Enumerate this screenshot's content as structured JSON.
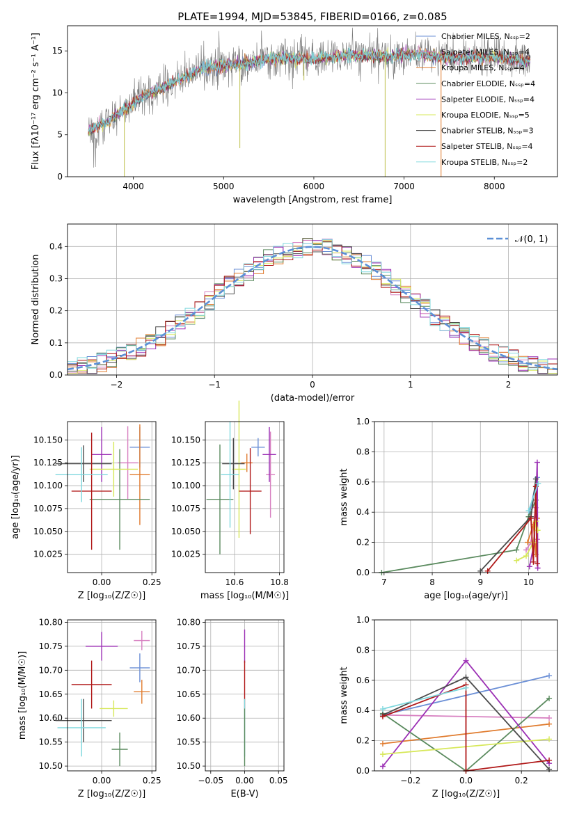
{
  "title": "PLATE=1994, MJD=53845, FIBERID=0166, z=0.085",
  "colors": {
    "Chabrier MILES": "#6b8fd6",
    "Salpeter MILES": "#d77fc0",
    "Kroupa MILES": "#e07b2e",
    "Chabrier ELODIE": "#5a8a5e",
    "Salpeter ELODIE": "#9b2fb4",
    "Kroupa ELODIE": "#d7e85a",
    "Chabrier STELIB": "#4a4a4a",
    "Salpeter STELIB": "#b01818",
    "Kroupa STELIB": "#7fd8de",
    "gaussian": "#5b8fd6",
    "grid": "#b0b0b0"
  },
  "chart_data": [
    {
      "type": "line",
      "name": "spectrum",
      "xlabel": "wavelength [Angstrom, rest frame]",
      "ylabel": "Flux [fλ10⁻¹⁷ erg cm⁻² s⁻¹ A⁻¹]",
      "xlim": [
        3270,
        8700
      ],
      "ylim": [
        0,
        18
      ],
      "xticks": [
        "4000",
        "5000",
        "6000",
        "7000",
        "8000"
      ],
      "yticks": [
        "0",
        "5",
        "10",
        "15"
      ],
      "legend_position": "top-right",
      "legend": [
        "Chabrier MILES, Nₛₛₚ=2",
        "Salpeter MILES, Nₛₛₚ=4",
        "Kroupa MILES, Nₛₛₚ=4",
        "Chabrier ELODIE, Nₛₛₚ=4",
        "Salpeter ELODIE, Nₛₛₚ=4",
        "Kroupa ELODIE, Nₛₛₚ=5",
        "Chabrier STELIB, Nₛₛₚ=3",
        "Salpeter STELIB, Nₛₛₚ=4",
        "Kroupa STELIB, Nₛₛₚ=2"
      ],
      "x_range_data": [
        3500,
        8400
      ],
      "continuum": [
        [
          3500,
          5.5
        ],
        [
          3700,
          6.5
        ],
        [
          3900,
          8
        ],
        [
          4100,
          9.5
        ],
        [
          4400,
          11
        ],
        [
          4800,
          13
        ],
        [
          5200,
          13.5
        ],
        [
          5600,
          14.2
        ],
        [
          6000,
          14
        ],
        [
          6400,
          14.5
        ],
        [
          6800,
          14.3
        ],
        [
          7200,
          14.6
        ],
        [
          7500,
          14.1
        ],
        [
          8000,
          14.3
        ],
        [
          8400,
          13.8
        ]
      ]
    },
    {
      "type": "bar",
      "name": "residual-histogram",
      "xlabel": "(data-model)/error",
      "ylabel": "Normed distribution",
      "xlim": [
        -2.5,
        2.5
      ],
      "ylim": [
        0,
        0.47
      ],
      "xticks": [
        "−2",
        "−1",
        "0",
        "1",
        "2"
      ],
      "yticks": [
        "0.0",
        "0.1",
        "0.2",
        "0.3",
        "0.4"
      ],
      "bin_width": 0.1,
      "legend_position": "top-right",
      "legend": [
        "𝒩(0, 1)"
      ]
    },
    {
      "type": "scatter",
      "name": "age-vs-Z",
      "xlabel": "Z [log₁₀(Z/Z☉)]",
      "ylabel": "age  [log₁₀(age/yr)]",
      "xlim": [
        -0.17,
        0.27
      ],
      "ylim": [
        10.005,
        10.17
      ],
      "xticks": [
        "0.00",
        "0.25"
      ],
      "yticks": [
        "10.025",
        "10.050",
        "10.075",
        "10.100",
        "10.125",
        "10.150"
      ],
      "points": [
        {
          "model": "Chabrier MILES",
          "x": 0.19,
          "xerr": 0.05,
          "y": 10.142,
          "yerr": 0.022
        },
        {
          "model": "Salpeter MILES",
          "x": 0.13,
          "xerr": 0.05,
          "y": 10.125,
          "yerr": 0.04
        },
        {
          "model": "Kroupa MILES",
          "x": 0.19,
          "xerr": 0.05,
          "y": 10.112,
          "yerr": 0.055
        },
        {
          "model": "Chabrier ELODIE",
          "x": 0.09,
          "xerr": 0.15,
          "y": 10.085,
          "yerr": 0.055
        },
        {
          "model": "Salpeter ELODIE",
          "x": -0.0,
          "xerr": 0.05,
          "y": 10.134,
          "yerr": 0.03
        },
        {
          "model": "Kroupa ELODIE",
          "x": 0.06,
          "xerr": 0.12,
          "y": 10.118,
          "yerr": 0.03
        },
        {
          "model": "Chabrier STELIB",
          "x": -0.09,
          "xerr": 0.14,
          "y": 10.124,
          "yerr": 0.02
        },
        {
          "model": "Salpeter STELIB",
          "x": -0.05,
          "xerr": 0.1,
          "y": 10.094,
          "yerr": 0.064
        },
        {
          "model": "Kroupa STELIB",
          "x": -0.1,
          "xerr": 0.13,
          "y": 10.112,
          "yerr": 0.03
        }
      ]
    },
    {
      "type": "scatter",
      "name": "age-vs-mass",
      "xlabel": "mass [log₁₀(M/M☉)]",
      "ylabel": "",
      "xlim": [
        10.47,
        10.82
      ],
      "ylim": [
        10.005,
        10.17
      ],
      "xticks": [
        "10.6",
        "10.8"
      ],
      "yticks": [
        "10.025",
        "10.050",
        "10.075",
        "10.100",
        "10.125",
        "10.150"
      ],
      "points": [
        {
          "model": "Chabrier MILES",
          "x": 10.705,
          "xerr": 0.03,
          "y": 10.142,
          "yerr": 0.01
        },
        {
          "model": "Salpeter MILES",
          "x": 10.76,
          "xerr": 0.02,
          "y": 10.112,
          "yerr": 0.047
        },
        {
          "model": "Kroupa MILES",
          "x": 10.655,
          "xerr": 0.025,
          "y": 10.125,
          "yerr": 0.01
        },
        {
          "model": "Chabrier ELODIE",
          "x": 10.535,
          "xerr": 0.06,
          "y": 10.085,
          "yerr": 0.06
        },
        {
          "model": "Salpeter ELODIE",
          "x": 10.755,
          "xerr": 0.03,
          "y": 10.134,
          "yerr": 0.03
        },
        {
          "model": "Kroupa ELODIE",
          "x": 10.62,
          "xerr": 0.03,
          "y": 10.118,
          "yerr": 0.075
        },
        {
          "model": "Chabrier STELIB",
          "x": 10.595,
          "xerr": 0.05,
          "y": 10.124,
          "yerr": 0.028
        },
        {
          "model": "Salpeter STELIB",
          "x": 10.67,
          "xerr": 0.05,
          "y": 10.094,
          "yerr": 0.047
        },
        {
          "model": "Kroupa STELIB",
          "x": 10.58,
          "xerr": 0.04,
          "y": 10.112,
          "yerr": 0.058
        }
      ]
    },
    {
      "type": "line",
      "name": "mass-weight-vs-age",
      "xlabel": "age  [log₁₀(age/yr)]",
      "ylabel": "mass weight",
      "xlim": [
        6.8,
        10.6
      ],
      "ylim": [
        0,
        1
      ],
      "xticks": [
        "7",
        "8",
        "9",
        "10"
      ],
      "yticks": [
        "0.0",
        "0.2",
        "0.4",
        "0.6",
        "0.8",
        "1.0"
      ],
      "series": [
        {
          "model": "Chabrier MILES",
          "points": [
            [
              10.0,
              0.37
            ],
            [
              10.18,
              0.63
            ]
          ]
        },
        {
          "model": "Salpeter MILES",
          "points": [
            [
              9.95,
              0.15
            ],
            [
              10.05,
              0.2
            ],
            [
              10.15,
              0.43
            ],
            [
              10.18,
              0.22
            ]
          ]
        },
        {
          "model": "Kroupa MILES",
          "points": [
            [
              9.98,
              0.2
            ],
            [
              10.1,
              0.32
            ],
            [
              10.15,
              0.12
            ],
            [
              10.18,
              0.36
            ]
          ]
        },
        {
          "model": "Chabrier ELODIE",
          "points": [
            [
              6.95,
              0.0
            ],
            [
              9.75,
              0.15
            ],
            [
              10.0,
              0.37
            ],
            [
              10.15,
              0.48
            ]
          ]
        },
        {
          "model": "Salpeter ELODIE",
          "points": [
            [
              10.02,
              0.04
            ],
            [
              10.12,
              0.2
            ],
            [
              10.18,
              0.73
            ],
            [
              10.19,
              0.03
            ]
          ]
        },
        {
          "model": "Kroupa ELODIE",
          "points": [
            [
              9.75,
              0.08
            ],
            [
              9.95,
              0.11
            ],
            [
              10.1,
              0.2
            ],
            [
              10.15,
              0.34
            ],
            [
              10.19,
              0.28
            ]
          ]
        },
        {
          "model": "Chabrier STELIB",
          "points": [
            [
              9.0,
              0.01
            ],
            [
              10.05,
              0.37
            ],
            [
              10.15,
              0.62
            ]
          ]
        },
        {
          "model": "Salpeter STELIB",
          "points": [
            [
              9.15,
              0.01
            ],
            [
              10.05,
              0.36
            ],
            [
              10.1,
              0.07
            ],
            [
              10.15,
              0.57
            ],
            [
              10.18,
              0.06
            ]
          ]
        },
        {
          "model": "Kroupa STELIB",
          "points": [
            [
              10.0,
              0.41
            ],
            [
              10.2,
              0.59
            ]
          ]
        }
      ]
    },
    {
      "type": "scatter",
      "name": "mass-vs-Z",
      "xlabel": "Z [log₁₀(Z/Z☉)]",
      "ylabel": "mass [log₁₀(M/M☉)]",
      "xlim": [
        -0.17,
        0.27
      ],
      "ylim": [
        10.49,
        10.805
      ],
      "xticks": [
        "0.00",
        "0.25"
      ],
      "yticks": [
        "10.50",
        "10.55",
        "10.60",
        "10.65",
        "10.70",
        "10.75",
        "10.80"
      ],
      "points": [
        {
          "model": "Chabrier MILES",
          "x": 0.19,
          "xerr": 0.05,
          "y": 10.705,
          "yerr": 0.03
        },
        {
          "model": "Salpeter MILES",
          "x": 0.2,
          "xerr": 0.04,
          "y": 10.762,
          "yerr": 0.02
        },
        {
          "model": "Kroupa MILES",
          "x": 0.2,
          "xerr": 0.04,
          "y": 10.655,
          "yerr": 0.025
        },
        {
          "model": "Chabrier ELODIE",
          "x": 0.09,
          "xerr": 0.04,
          "y": 10.535,
          "yerr": 0.035
        },
        {
          "model": "Salpeter ELODIE",
          "x": -0.0,
          "xerr": 0.08,
          "y": 10.75,
          "yerr": 0.03
        },
        {
          "model": "Kroupa ELODIE",
          "x": 0.06,
          "xerr": 0.07,
          "y": 10.62,
          "yerr": 0.017
        },
        {
          "model": "Chabrier STELIB",
          "x": -0.09,
          "xerr": 0.14,
          "y": 10.595,
          "yerr": 0.045
        },
        {
          "model": "Salpeter STELIB",
          "x": -0.05,
          "xerr": 0.1,
          "y": 10.67,
          "yerr": 0.05
        },
        {
          "model": "Kroupa STELIB",
          "x": -0.1,
          "xerr": 0.12,
          "y": 10.58,
          "yerr": 0.06
        }
      ]
    },
    {
      "type": "scatter",
      "name": "mass-vs-EBV",
      "xlabel": "E(B-V)",
      "ylabel": "",
      "xlim": [
        -0.058,
        0.058
      ],
      "ylim": [
        10.49,
        10.805
      ],
      "xticks": [
        "−0.05",
        "0.00",
        "0.05"
      ],
      "yticks": [
        "10.50",
        "10.55",
        "10.60",
        "10.65",
        "10.70",
        "10.75",
        "10.80"
      ],
      "points": [
        {
          "model": "Salpeter ELODIE",
          "x": 0.0,
          "y": 10.75,
          "yerr": 0.035
        },
        {
          "model": "Salpeter STELIB",
          "x": 0.0,
          "y": 10.67,
          "yerr": 0.05
        },
        {
          "model": "Kroupa STELIB",
          "x": 0.0,
          "y": 10.58,
          "yerr": 0.06
        },
        {
          "model": "Chabrier ELODIE",
          "x": 0.0,
          "y": 10.56,
          "yerr": 0.06
        }
      ]
    },
    {
      "type": "line",
      "name": "mass-weight-vs-Z",
      "xlabel": "Z [log₁₀(Z/Z☉)]",
      "ylabel": "mass weight",
      "xlim": [
        -0.33,
        0.33
      ],
      "ylim": [
        0,
        1
      ],
      "xticks": [
        "−0.2",
        "0.0",
        "0.2"
      ],
      "yticks": [
        "0.0",
        "0.2",
        "0.4",
        "0.6",
        "0.8",
        "1.0"
      ],
      "series": [
        {
          "model": "Chabrier MILES",
          "points": [
            [
              -0.3,
              0.37
            ],
            [
              0.3,
              0.63
            ]
          ]
        },
        {
          "model": "Salpeter MILES",
          "points": [
            [
              -0.3,
              0.37
            ],
            [
              0.3,
              0.35
            ]
          ]
        },
        {
          "model": "Kroupa MILES",
          "points": [
            [
              -0.3,
              0.18
            ],
            [
              0.3,
              0.31
            ]
          ]
        },
        {
          "model": "Chabrier ELODIE",
          "points": [
            [
              -0.3,
              0.38
            ],
            [
              0.0,
              0.0
            ],
            [
              0.3,
              0.48
            ]
          ]
        },
        {
          "model": "Salpeter ELODIE",
          "points": [
            [
              -0.3,
              0.03
            ],
            [
              0.0,
              0.73
            ],
            [
              0.3,
              0.05
            ]
          ]
        },
        {
          "model": "Kroupa ELODIE",
          "points": [
            [
              -0.3,
              0.11
            ],
            [
              0.3,
              0.21
            ]
          ]
        },
        {
          "model": "Chabrier STELIB",
          "points": [
            [
              -0.3,
              0.37
            ],
            [
              0.0,
              0.62
            ],
            [
              0.3,
              0.01
            ]
          ]
        },
        {
          "model": "Salpeter STELIB",
          "points": [
            [
              -0.3,
              0.36
            ],
            [
              0.0,
              0.57
            ],
            [
              0.0,
              0.0
            ],
            [
              0.3,
              0.07
            ]
          ]
        },
        {
          "model": "Kroupa STELIB",
          "points": [
            [
              -0.3,
              0.41
            ],
            [
              0.0,
              0.55
            ]
          ]
        }
      ]
    }
  ]
}
